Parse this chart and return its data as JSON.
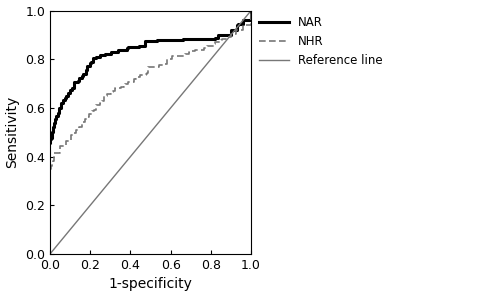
{
  "title": "",
  "xlabel": "1-specificity",
  "ylabel": "Sensitivity",
  "xlim": [
    0.0,
    1.0
  ],
  "ylim": [
    0.0,
    1.0
  ],
  "xticks": [
    0.0,
    0.2,
    0.4,
    0.6,
    0.8,
    1.0
  ],
  "yticks": [
    0.0,
    0.2,
    0.4,
    0.6,
    0.8,
    1.0
  ],
  "reference_line_color": "#777777",
  "NAR_color": "#000000",
  "NHR_color": "#777777",
  "legend_labels": [
    "NAR",
    "NHR",
    "Reference line"
  ],
  "background_color": "#ffffff",
  "NAR_linewidth": 2.2,
  "NHR_linewidth": 1.2,
  "ref_linewidth": 1.0,
  "figsize": [
    5.0,
    2.97
  ],
  "dpi": 100,
  "NAR_fpr": [
    0.0,
    0.005,
    0.01,
    0.015,
    0.02,
    0.025,
    0.03,
    0.04,
    0.05,
    0.06,
    0.07,
    0.08,
    0.09,
    0.1,
    0.11,
    0.12,
    0.13,
    0.14,
    0.15,
    0.16,
    0.17,
    0.18,
    0.19,
    0.2,
    0.22,
    0.24,
    0.26,
    0.28,
    0.3,
    0.32,
    0.34,
    0.36,
    0.38,
    0.4,
    0.43,
    0.46,
    0.5,
    0.54,
    0.58,
    0.62,
    0.66,
    0.7,
    0.74,
    0.78,
    0.82,
    0.85,
    0.88,
    0.9,
    0.93,
    0.96,
    1.0
  ],
  "NAR_tpr": [
    0.45,
    0.47,
    0.5,
    0.52,
    0.53,
    0.55,
    0.56,
    0.58,
    0.6,
    0.62,
    0.63,
    0.64,
    0.66,
    0.67,
    0.68,
    0.69,
    0.7,
    0.71,
    0.72,
    0.73,
    0.74,
    0.75,
    0.76,
    0.78,
    0.79,
    0.8,
    0.81,
    0.81,
    0.82,
    0.82,
    0.83,
    0.83,
    0.84,
    0.84,
    0.845,
    0.85,
    0.855,
    0.86,
    0.862,
    0.864,
    0.866,
    0.868,
    0.875,
    0.882,
    0.888,
    0.892,
    0.9,
    0.92,
    0.94,
    0.96,
    1.0
  ],
  "NHR_fpr": [
    0.0,
    0.005,
    0.01,
    0.015,
    0.02,
    0.025,
    0.03,
    0.04,
    0.05,
    0.06,
    0.07,
    0.08,
    0.09,
    0.1,
    0.11,
    0.12,
    0.13,
    0.14,
    0.15,
    0.16,
    0.17,
    0.18,
    0.19,
    0.2,
    0.22,
    0.24,
    0.26,
    0.28,
    0.3,
    0.33,
    0.36,
    0.4,
    0.44,
    0.48,
    0.52,
    0.56,
    0.6,
    0.65,
    0.7,
    0.74,
    0.78,
    0.82,
    0.85,
    0.88,
    0.9,
    0.93,
    0.96,
    1.0
  ],
  "NHR_tpr": [
    0.35,
    0.36,
    0.37,
    0.38,
    0.39,
    0.4,
    0.4,
    0.41,
    0.42,
    0.43,
    0.44,
    0.45,
    0.46,
    0.47,
    0.48,
    0.49,
    0.5,
    0.51,
    0.52,
    0.53,
    0.54,
    0.55,
    0.56,
    0.57,
    0.59,
    0.61,
    0.63,
    0.64,
    0.65,
    0.67,
    0.68,
    0.7,
    0.72,
    0.74,
    0.76,
    0.78,
    0.79,
    0.81,
    0.82,
    0.84,
    0.855,
    0.87,
    0.88,
    0.89,
    0.905,
    0.92,
    0.94,
    1.0
  ]
}
